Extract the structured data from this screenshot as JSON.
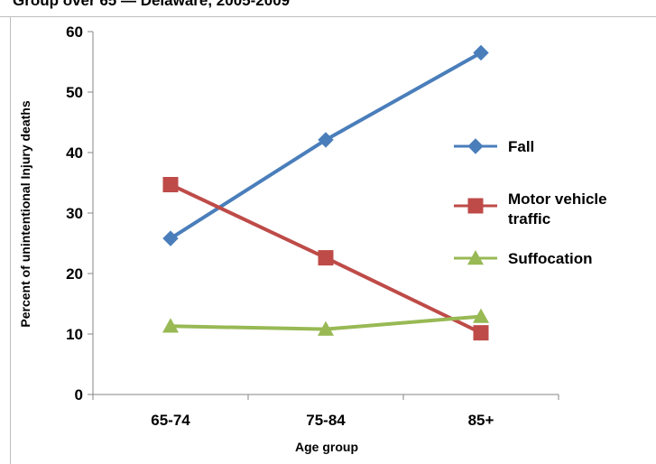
{
  "chart_data": {
    "type": "line",
    "title": "Group over 65 — Delaware, 2005-2009",
    "xlabel": "Age group",
    "ylabel": "Percent of unintentional Injury deaths",
    "categories": [
      "65-74",
      "75-84",
      "85+"
    ],
    "ylim": [
      0,
      60
    ],
    "yticks": [
      0,
      10,
      20,
      30,
      40,
      50,
      60
    ],
    "grid": false,
    "legend_position": "right",
    "series": [
      {
        "name": "Fall",
        "values": [
          25.8,
          42.1,
          56.5
        ],
        "color": "#4a7ebb",
        "marker": "diamond"
      },
      {
        "name": "Motor vehicle traffic",
        "values": [
          34.7,
          22.6,
          10.2
        ],
        "color": "#be4b48",
        "marker": "square"
      },
      {
        "name": "Suffocation",
        "values": [
          11.3,
          10.8,
          12.9
        ],
        "color": "#98b954",
        "marker": "triangle"
      }
    ]
  }
}
